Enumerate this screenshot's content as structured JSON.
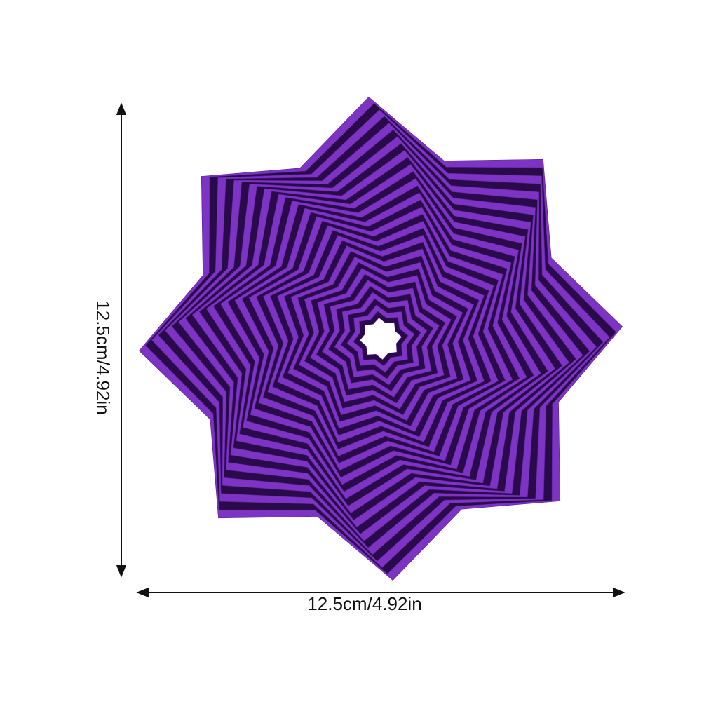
{
  "dimensions": {
    "height": "12.5cm/4.92in",
    "width": "12.5cm/4.92in"
  }
}
